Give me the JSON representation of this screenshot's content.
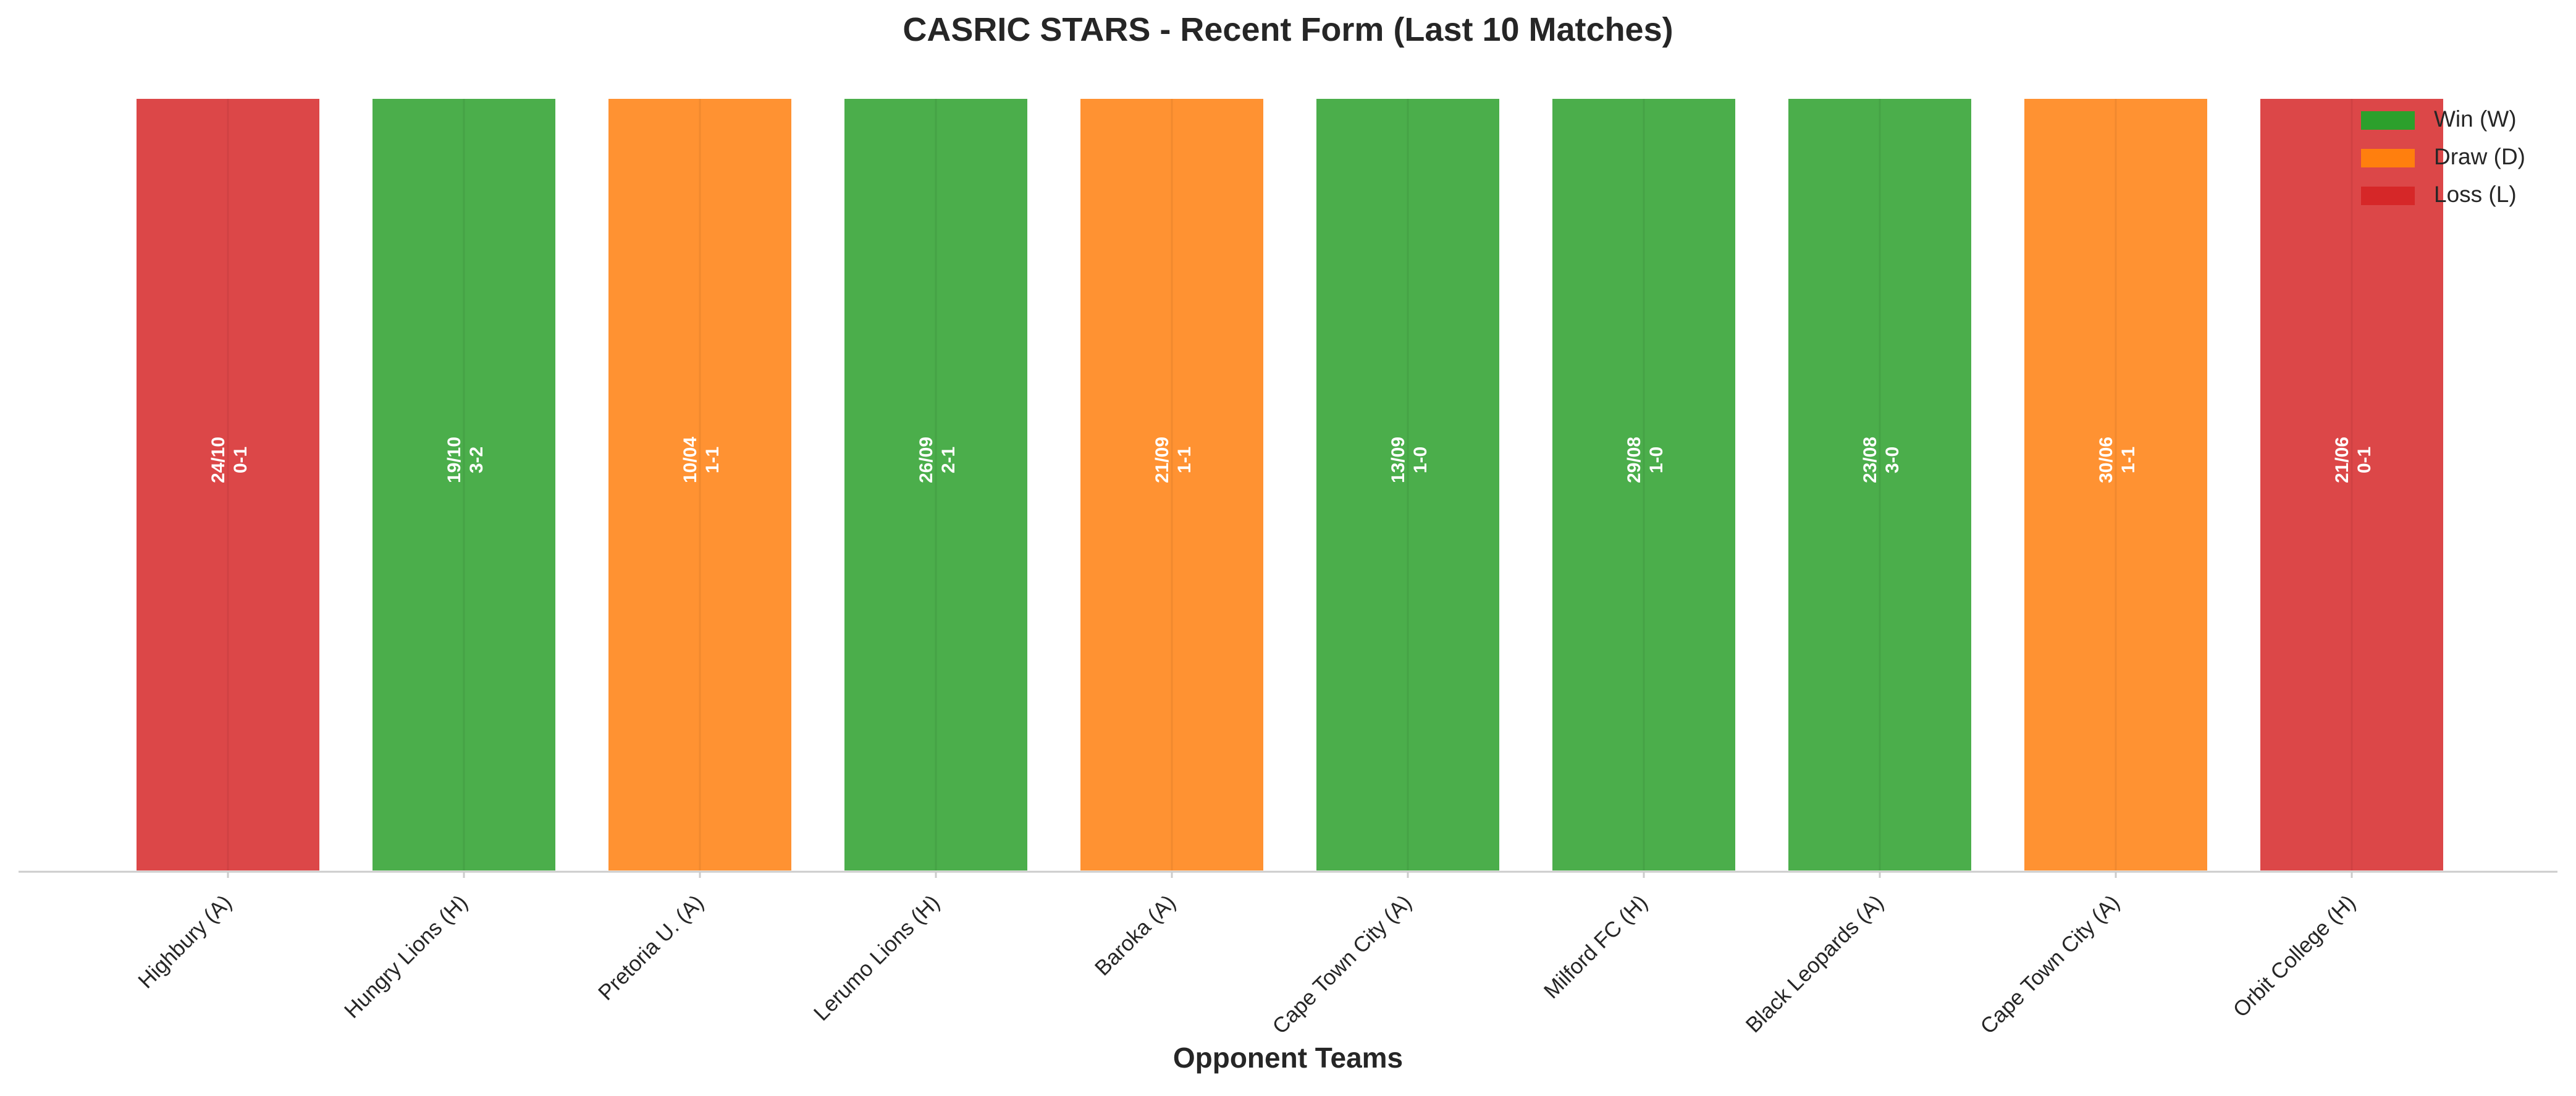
{
  "chart_data": {
    "type": "bar",
    "title": "CASRIC STARS - Recent Form (Last 10 Matches)",
    "xlabel": "Opponent Teams",
    "ylabel": "",
    "categories": [
      "Highbury (A)",
      "Hungry Lions (H)",
      "Pretoria U. (A)",
      "Lerumo Lions (H)",
      "Baroka (A)",
      "Cape Town City (A)",
      "Milford FC (H)",
      "Black Leopards (A)",
      "Cape Town City (A)",
      "Orbit College (H)"
    ],
    "values": [
      1,
      1,
      1,
      1,
      1,
      1,
      1,
      1,
      1,
      1
    ],
    "results": [
      "L",
      "W",
      "D",
      "W",
      "D",
      "W",
      "W",
      "W",
      "D",
      "L"
    ],
    "dates": [
      "24/10",
      "19/10",
      "10/04",
      "26/09",
      "21/09",
      "13/09",
      "29/08",
      "23/08",
      "30/06",
      "21/06"
    ],
    "scores": [
      "0-1",
      "3-2",
      "1-1",
      "2-1",
      "1-1",
      "1-0",
      "1-0",
      "3-0",
      "1-1",
      "0-1"
    ],
    "ylim": [
      0,
      1
    ],
    "grid": false,
    "legend": {
      "placement": "top-right",
      "entries": [
        {
          "key": "W",
          "label": "Win (W)",
          "color": "#2ca02c"
        },
        {
          "key": "D",
          "label": "Draw (D)",
          "color": "#ff7f0e"
        },
        {
          "key": "L",
          "label": "Loss (L)",
          "color": "#d62728"
        }
      ]
    },
    "colors": {
      "W": "#2ca02c",
      "D": "#ff7f0e",
      "L": "#d62728"
    }
  }
}
